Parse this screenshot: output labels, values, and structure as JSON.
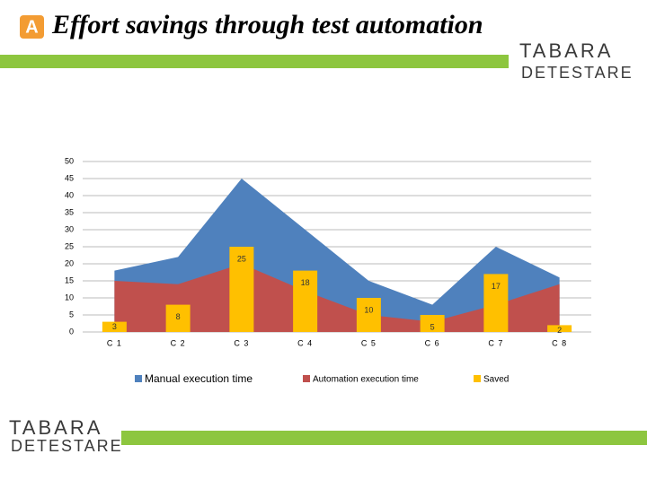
{
  "header": {
    "title": "Effort savings through test automation"
  },
  "logo": {
    "top": "TABARA",
    "bottom": "DETESTARE"
  },
  "chart_data": {
    "type": "combo",
    "categories": [
      "C 1",
      "C 2",
      "C 3",
      "C 4",
      "C 5",
      "C 6",
      "C 7",
      "C 8"
    ],
    "series": [
      {
        "name": "Manual execution time",
        "type": "area",
        "color": "#4f81bd",
        "values": [
          18,
          22,
          45,
          30,
          15,
          8,
          25,
          16
        ]
      },
      {
        "name": "Automation execution time",
        "type": "area",
        "color": "#c0504d",
        "values": [
          15,
          14,
          20,
          12,
          5,
          3,
          8,
          14
        ]
      },
      {
        "name": "Saved",
        "type": "bar",
        "color": "#ffc000",
        "values": [
          3,
          8,
          25,
          18,
          10,
          5,
          17,
          2
        ]
      }
    ],
    "ylim": [
      0,
      50
    ],
    "yticks": [
      0,
      5,
      10,
      15,
      20,
      25,
      30,
      35,
      40,
      45,
      50
    ],
    "grid": true,
    "legend": "bottom"
  }
}
